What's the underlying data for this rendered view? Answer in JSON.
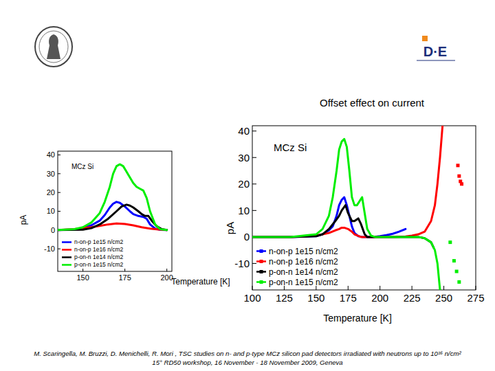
{
  "title": "Offset effect on current",
  "logo_text": "D·E",
  "footer": [
    "M. Scaringella, M. Bruzzi, D. Menichelli, R. Mori , TSC studies on n- and p-type MCz silicon pad detectors irradiated with neutrons up to 10¹⁶ n/cm²",
    "15° RD50 workshop, 16 November - 18 November 2009, Geneva"
  ],
  "chart_data": [
    {
      "type": "line",
      "annotation": "MCz Si",
      "x_label": "Temperature [K]",
      "y_label": "pA",
      "xlim": [
        135,
        203
      ],
      "ylim": [
        -22,
        42
      ],
      "xticks": [
        150,
        175,
        200
      ],
      "yticks": [
        -10,
        0,
        10,
        20,
        30,
        40
      ],
      "legend": "lower left",
      "series": [
        {
          "name": "n-on-p 1e15 n/cm2",
          "color": "#0000ff",
          "x": [
            135,
            145,
            150,
            155,
            160,
            163,
            166,
            168,
            170,
            172,
            175,
            178,
            180,
            183,
            186,
            188,
            190,
            193,
            196,
            200
          ],
          "values": [
            0,
            0.3,
            1,
            2.5,
            5,
            8,
            12,
            14,
            15,
            14.5,
            12.5,
            10,
            8.5,
            7.5,
            7,
            6,
            3,
            0.8,
            0.1,
            0
          ]
        },
        {
          "name": "n-on-p 1e16 n/cm2",
          "color": "#ff0000",
          "x": [
            135,
            145,
            150,
            155,
            160,
            165,
            170,
            175,
            180,
            185,
            190,
            195,
            200
          ],
          "values": [
            0,
            0.5,
            1,
            1.5,
            2.2,
            3,
            3.5,
            3.2,
            2.5,
            1.5,
            0.8,
            0.3,
            0
          ]
        },
        {
          "name": "p-on-n 1e14 n/cm2",
          "color": "#000000",
          "x": [
            135,
            150,
            155,
            160,
            165,
            170,
            173,
            176,
            178,
            180,
            183,
            185,
            187,
            189,
            191,
            194,
            197,
            200
          ],
          "values": [
            0,
            0.2,
            1,
            3,
            6,
            10,
            12.5,
            13.5,
            13,
            12,
            10,
            8.5,
            7.5,
            7.5,
            5,
            2,
            0.5,
            0
          ]
        },
        {
          "name": "p-on-n 1e15 n/cm2",
          "color": "#00ee00",
          "x": [
            135,
            145,
            150,
            155,
            160,
            163,
            166,
            168,
            170,
            172,
            174,
            176,
            178,
            180,
            182,
            184,
            186,
            188,
            190,
            193,
            196,
            200
          ],
          "values": [
            0,
            0.5,
            1.5,
            4,
            9,
            15,
            23,
            30,
            34,
            35,
            34,
            31,
            28,
            25,
            23,
            22,
            21,
            17,
            10,
            3,
            0.5,
            0
          ]
        }
      ]
    },
    {
      "type": "line",
      "annotation": "MCz Si",
      "x_label": "Temperature [K]",
      "y_label": "pA",
      "xlim": [
        100,
        275
      ],
      "ylim": [
        -20,
        42
      ],
      "xticks": [
        100,
        125,
        150,
        175,
        200,
        225,
        250,
        275
      ],
      "yticks": [
        -10,
        0,
        10,
        20,
        30,
        40
      ],
      "legend": "lower left",
      "series": [
        {
          "name": "n-on-p 1e15 n/cm2",
          "color": "#0000ff",
          "marker": "square",
          "x": [
            100,
            130,
            150,
            155,
            160,
            163,
            166,
            168,
            170,
            172,
            174,
            176,
            178,
            180,
            183,
            186,
            190,
            195,
            200,
            205,
            210,
            215,
            220
          ],
          "values": [
            0,
            0,
            0.3,
            1,
            2.5,
            4,
            8,
            12,
            14,
            15,
            12,
            8,
            4,
            1.5,
            0.3,
            0,
            0,
            0,
            0.3,
            0.7,
            1.2,
            2,
            3
          ]
        },
        {
          "name": "n-on-p 1e16 n/cm2",
          "color": "#ff0000",
          "marker": "square",
          "x": [
            100,
            130,
            150,
            160,
            165,
            168,
            170,
            172,
            175,
            178,
            180,
            185,
            190,
            200,
            210,
            220,
            225,
            230,
            235,
            240,
            243,
            245,
            247,
            249,
            255,
            261,
            261.5,
            262,
            262.5,
            263,
            263.5,
            264
          ],
          "values": [
            0,
            0,
            0.5,
            1.5,
            2.5,
            3,
            3.5,
            3.5,
            3,
            2,
            1,
            0,
            0,
            0,
            0,
            0.2,
            0.5,
            1,
            2,
            6,
            12,
            20,
            30,
            42,
            null,
            27,
            null,
            23,
            null,
            21,
            null,
            20
          ]
        },
        {
          "name": "p-on-n 1e14 n/cm2",
          "color": "#000000",
          "marker": "square",
          "x": [
            100,
            130,
            150,
            155,
            160,
            165,
            168,
            170,
            173,
            175,
            178,
            180,
            183,
            185,
            188,
            190,
            200,
            220,
            230,
            235,
            240,
            242
          ],
          "values": [
            0,
            0,
            0.3,
            1,
            3,
            6,
            8,
            10,
            12,
            9,
            6,
            6,
            7,
            5,
            1,
            0,
            0,
            0,
            0,
            -0.5,
            -2,
            -4
          ]
        },
        {
          "name": "p-on-n 1e15 n/cm2",
          "color": "#00ee00",
          "marker": "square",
          "x": [
            100,
            130,
            150,
            155,
            160,
            163,
            166,
            168,
            170,
            172,
            174,
            176,
            178,
            180,
            182,
            184,
            186,
            188,
            190,
            193,
            196,
            200,
            220,
            230,
            235,
            240,
            243,
            245,
            247,
            251,
            255,
            256.5,
            258,
            259,
            260,
            261,
            262
          ],
          "values": [
            0,
            0,
            1,
            3,
            8,
            15,
            25,
            33,
            36,
            37,
            34,
            25,
            15,
            12,
            12,
            13.5,
            15,
            9,
            3,
            0.5,
            0,
            0,
            0,
            0,
            -0.5,
            -2,
            -5,
            -10,
            -20,
            null,
            -2,
            null,
            -9,
            null,
            -13,
            null,
            -17
          ]
        }
      ]
    }
  ]
}
